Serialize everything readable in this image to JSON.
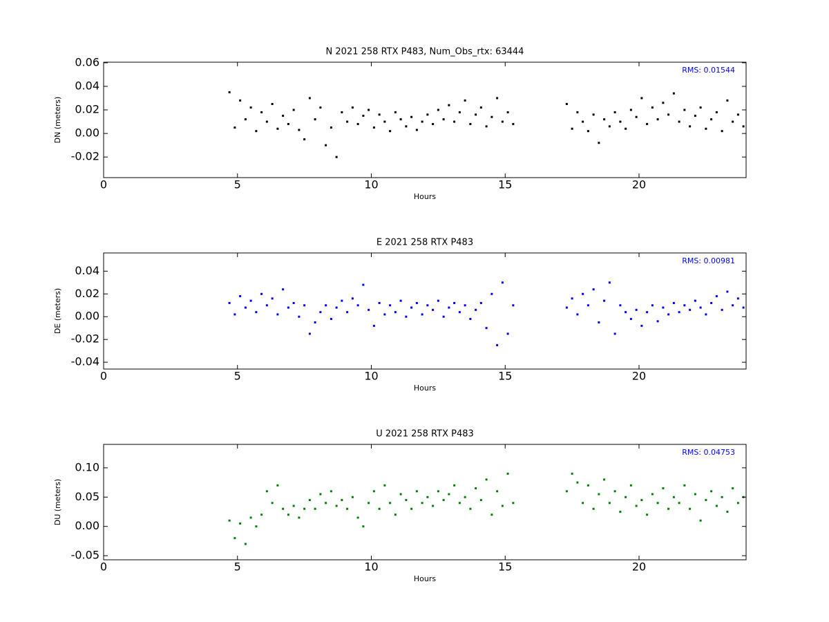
{
  "chart_data": [
    {
      "type": "scatter",
      "title": "N 2021 258 RTX  P483, Num_Obs_rtx: 63444",
      "xlabel": "Hours",
      "ylabel": "DN (meters)",
      "annotation": "RMS:  0.01544",
      "color": "#000000",
      "xlim": [
        0,
        24
      ],
      "xticks": [
        0,
        5,
        10,
        15,
        20
      ],
      "ylim": [
        -0.0375,
        0.0605
      ],
      "yticks": [
        -0.02,
        {
          "value": 0,
          "label": "0.00"
        },
        0.02,
        0.04,
        0.06
      ],
      "x": [
        4.7,
        4.9,
        5.1,
        5.3,
        5.5,
        5.7,
        5.9,
        6.1,
        6.3,
        6.5,
        6.7,
        6.9,
        7.1,
        7.3,
        7.5,
        7.7,
        7.9,
        8.1,
        8.3,
        8.5,
        8.7,
        8.9,
        9.1,
        9.3,
        9.5,
        9.7,
        9.9,
        10.1,
        10.3,
        10.5,
        10.7,
        10.9,
        11.1,
        11.3,
        11.5,
        11.7,
        11.9,
        12.1,
        12.3,
        12.5,
        12.7,
        12.9,
        13.1,
        13.3,
        13.5,
        13.7,
        13.9,
        14.1,
        14.3,
        14.5,
        14.7,
        14.9,
        15.1,
        15.3,
        17.3,
        17.5,
        17.7,
        17.9,
        18.1,
        18.3,
        18.5,
        18.7,
        18.9,
        19.1,
        19.3,
        19.5,
        19.7,
        19.9,
        20.1,
        20.3,
        20.5,
        20.7,
        20.9,
        21.1,
        21.3,
        21.5,
        21.7,
        21.9,
        22.1,
        22.3,
        22.5,
        22.7,
        22.9,
        23.1,
        23.3,
        23.5,
        23.7,
        23.9
      ],
      "values": [
        0.035,
        0.005,
        0.028,
        0.012,
        0.022,
        0.002,
        0.018,
        0.01,
        0.025,
        0.004,
        0.015,
        0.008,
        0.02,
        0.003,
        -0.005,
        0.03,
        0.012,
        0.022,
        -0.01,
        0.005,
        -0.02,
        0.018,
        0.01,
        0.022,
        0.008,
        0.015,
        0.02,
        0.005,
        0.016,
        0.01,
        0.002,
        0.018,
        0.012,
        0.006,
        0.014,
        0.003,
        0.01,
        0.016,
        0.008,
        0.02,
        0.012,
        0.024,
        0.01,
        0.018,
        0.028,
        0.008,
        0.016,
        0.022,
        0.006,
        0.014,
        0.03,
        0.01,
        0.018,
        0.008,
        0.025,
        0.004,
        0.018,
        0.01,
        0.002,
        0.016,
        -0.008,
        0.012,
        0.006,
        0.018,
        0.01,
        0.004,
        0.02,
        0.014,
        0.03,
        0.008,
        0.022,
        0.012,
        0.026,
        0.016,
        0.034,
        0.01,
        0.02,
        0.006,
        0.015,
        0.022,
        0.004,
        0.012,
        0.018,
        0.002,
        0.028,
        0.01,
        0.016,
        0.006
      ]
    },
    {
      "type": "scatter",
      "title": "E 2021 258 RTX  P483",
      "xlabel": "Hours",
      "ylabel": "DE (meters)",
      "annotation": "RMS:  0.00981",
      "color": "#0000ff",
      "xlim": [
        0,
        24
      ],
      "xticks": [
        0,
        5,
        10,
        15,
        20
      ],
      "ylim": [
        -0.046,
        0.056
      ],
      "yticks": [
        -0.04,
        -0.02,
        {
          "value": 0,
          "label": "0.00"
        },
        0.02,
        0.04
      ],
      "x": [
        4.7,
        4.9,
        5.1,
        5.3,
        5.5,
        5.7,
        5.9,
        6.1,
        6.3,
        6.5,
        6.7,
        6.9,
        7.1,
        7.3,
        7.5,
        7.7,
        7.9,
        8.1,
        8.3,
        8.5,
        8.7,
        8.9,
        9.1,
        9.3,
        9.5,
        9.7,
        9.9,
        10.1,
        10.3,
        10.5,
        10.7,
        10.9,
        11.1,
        11.3,
        11.5,
        11.7,
        11.9,
        12.1,
        12.3,
        12.5,
        12.7,
        12.9,
        13.1,
        13.3,
        13.5,
        13.7,
        13.9,
        14.1,
        14.3,
        14.5,
        14.7,
        14.9,
        15.1,
        15.3,
        17.3,
        17.5,
        17.7,
        17.9,
        18.1,
        18.3,
        18.5,
        18.7,
        18.9,
        19.1,
        19.3,
        19.5,
        19.7,
        19.9,
        20.1,
        20.3,
        20.5,
        20.7,
        20.9,
        21.1,
        21.3,
        21.5,
        21.7,
        21.9,
        22.1,
        22.3,
        22.5,
        22.7,
        22.9,
        23.1,
        23.3,
        23.5,
        23.7,
        23.9
      ],
      "values": [
        0.012,
        0.002,
        0.018,
        0.008,
        0.014,
        0.004,
        0.02,
        0.01,
        0.016,
        0.002,
        0.024,
        0.008,
        0.012,
        0.0,
        0.01,
        -0.015,
        -0.005,
        0.004,
        0.01,
        -0.002,
        0.008,
        0.014,
        0.004,
        0.016,
        0.01,
        0.028,
        0.006,
        -0.008,
        0.012,
        0.002,
        0.01,
        0.004,
        0.014,
        0.0,
        0.008,
        0.012,
        0.002,
        0.01,
        0.006,
        0.014,
        0.0,
        0.008,
        0.012,
        0.004,
        0.01,
        -0.002,
        0.006,
        0.012,
        -0.01,
        0.02,
        -0.025,
        0.03,
        -0.015,
        0.01,
        0.008,
        0.016,
        0.002,
        0.02,
        0.01,
        0.024,
        -0.005,
        0.014,
        0.03,
        -0.015,
        0.01,
        0.004,
        -0.002,
        0.006,
        -0.008,
        0.004,
        0.01,
        -0.004,
        0.008,
        0.002,
        0.012,
        0.004,
        0.01,
        0.006,
        0.014,
        0.008,
        0.002,
        0.012,
        0.018,
        0.006,
        0.022,
        0.01,
        0.016,
        0.008
      ]
    },
    {
      "type": "scatter",
      "title": "U 2021 258 RTX  P483",
      "xlabel": "Hours",
      "ylabel": "DU (meters)",
      "annotation": "RMS:  0.04753",
      "color": "#008000",
      "xlim": [
        0,
        24
      ],
      "xticks": [
        0,
        5,
        10,
        15,
        20
      ],
      "ylim": [
        -0.057,
        0.14
      ],
      "yticks": [
        -0.05,
        {
          "value": 0,
          "label": "0.00"
        },
        0.05,
        {
          "value": 0.1,
          "label": "0.10"
        }
      ],
      "x": [
        4.7,
        4.9,
        5.1,
        5.3,
        5.5,
        5.7,
        5.9,
        6.1,
        6.3,
        6.5,
        6.7,
        6.9,
        7.1,
        7.3,
        7.5,
        7.7,
        7.9,
        8.1,
        8.3,
        8.5,
        8.7,
        8.9,
        9.1,
        9.3,
        9.5,
        9.7,
        9.9,
        10.1,
        10.3,
        10.5,
        10.7,
        10.9,
        11.1,
        11.3,
        11.5,
        11.7,
        11.9,
        12.1,
        12.3,
        12.5,
        12.7,
        12.9,
        13.1,
        13.3,
        13.5,
        13.7,
        13.9,
        14.1,
        14.3,
        14.5,
        14.7,
        14.9,
        15.1,
        15.3,
        17.3,
        17.5,
        17.7,
        17.9,
        18.1,
        18.3,
        18.5,
        18.7,
        18.9,
        19.1,
        19.3,
        19.5,
        19.7,
        19.9,
        20.1,
        20.3,
        20.5,
        20.7,
        20.9,
        21.1,
        21.3,
        21.5,
        21.7,
        21.9,
        22.1,
        22.3,
        22.5,
        22.7,
        22.9,
        23.1,
        23.3,
        23.5,
        23.7,
        23.9
      ],
      "values": [
        0.01,
        -0.02,
        0.005,
        -0.03,
        0.015,
        0.0,
        0.02,
        0.06,
        0.04,
        0.07,
        0.03,
        0.02,
        0.035,
        0.015,
        0.03,
        0.045,
        0.03,
        0.055,
        0.04,
        0.06,
        0.035,
        0.045,
        0.03,
        0.05,
        0.015,
        0.0,
        0.04,
        0.06,
        0.03,
        0.07,
        0.04,
        0.02,
        0.055,
        0.045,
        0.03,
        0.06,
        0.04,
        0.05,
        0.035,
        0.06,
        0.045,
        0.055,
        0.07,
        0.04,
        0.05,
        0.03,
        0.065,
        0.045,
        0.08,
        0.02,
        0.06,
        0.035,
        0.09,
        0.04,
        0.06,
        0.09,
        0.075,
        0.04,
        0.07,
        0.03,
        0.055,
        0.08,
        0.04,
        0.06,
        0.025,
        0.05,
        0.07,
        0.035,
        0.045,
        0.02,
        0.055,
        0.04,
        0.065,
        0.03,
        0.05,
        0.04,
        0.07,
        0.03,
        0.055,
        0.01,
        0.045,
        0.06,
        0.035,
        0.05,
        0.025,
        0.065,
        0.04,
        0.05
      ]
    }
  ]
}
